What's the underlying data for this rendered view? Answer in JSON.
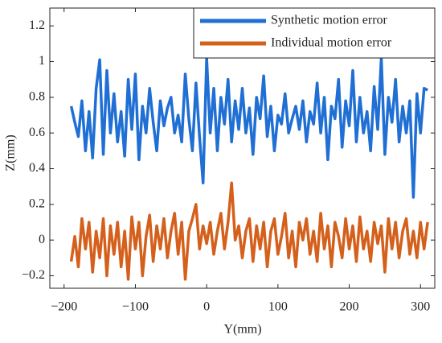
{
  "chart_data": {
    "type": "line",
    "xlabel": "Y(mm)",
    "ylabel": "Z(mm)",
    "x": [
      -190,
      -185,
      -180,
      -175,
      -170,
      -165,
      -160,
      -155,
      -150,
      -145,
      -140,
      -135,
      -130,
      -125,
      -120,
      -115,
      -110,
      -105,
      -100,
      -95,
      -90,
      -85,
      -80,
      -75,
      -70,
      -65,
      -60,
      -55,
      -50,
      -45,
      -40,
      -35,
      -30,
      -25,
      -20,
      -15,
      -10,
      -5,
      0,
      5,
      10,
      15,
      20,
      25,
      30,
      35,
      40,
      45,
      50,
      55,
      60,
      65,
      70,
      75,
      80,
      85,
      90,
      95,
      100,
      105,
      110,
      115,
      120,
      125,
      130,
      135,
      140,
      145,
      150,
      155,
      160,
      165,
      170,
      175,
      180,
      185,
      190,
      195,
      200,
      205,
      210,
      215,
      220,
      225,
      230,
      235,
      240,
      245,
      250,
      255,
      260,
      265,
      270,
      275,
      280,
      285,
      290,
      295,
      300,
      305,
      310
    ],
    "series": [
      {
        "name": "Synthetic motion error",
        "color": "#1f6fd4",
        "values": [
          0.75,
          0.66,
          0.58,
          0.78,
          0.5,
          0.72,
          0.46,
          0.85,
          1.01,
          0.48,
          0.95,
          0.6,
          0.82,
          0.55,
          0.72,
          0.47,
          0.9,
          0.62,
          0.93,
          0.45,
          0.75,
          0.6,
          0.85,
          0.66,
          0.5,
          0.78,
          0.64,
          0.74,
          0.8,
          0.6,
          0.7,
          0.55,
          0.93,
          0.68,
          0.5,
          0.88,
          0.58,
          0.32,
          1.02,
          0.6,
          0.85,
          0.5,
          0.8,
          0.65,
          0.9,
          0.55,
          0.78,
          0.62,
          0.85,
          0.6,
          0.74,
          0.48,
          0.8,
          0.68,
          0.92,
          0.58,
          0.75,
          0.5,
          0.7,
          0.65,
          0.82,
          0.6,
          0.68,
          0.75,
          0.62,
          0.78,
          0.55,
          0.72,
          0.65,
          0.88,
          0.6,
          0.8,
          0.45,
          0.75,
          0.68,
          0.9,
          0.52,
          0.78,
          0.64,
          0.95,
          0.55,
          0.8,
          0.6,
          0.72,
          0.5,
          0.86,
          0.62,
          1.02,
          0.48,
          0.8,
          0.66,
          0.9,
          0.55,
          0.75,
          0.6,
          0.78,
          0.24,
          0.82,
          0.6,
          0.85,
          0.84
        ]
      },
      {
        "name": "Individual motion error",
        "color": "#d4601c",
        "values": [
          -0.12,
          0.02,
          -0.15,
          0.12,
          -0.05,
          0.1,
          -0.18,
          0.05,
          -0.1,
          0.12,
          -0.2,
          0.08,
          -0.08,
          0.1,
          -0.15,
          0.05,
          -0.22,
          0.13,
          -0.05,
          0.1,
          -0.2,
          0.02,
          0.14,
          -0.12,
          0.08,
          -0.05,
          0.12,
          -0.1,
          0.05,
          0.15,
          -0.08,
          0.1,
          -0.22,
          0.05,
          0.12,
          0.2,
          -0.05,
          0.08,
          -0.02,
          0.1,
          -0.08,
          0.05,
          0.15,
          -0.05,
          0.1,
          0.32,
          0,
          0.08,
          -0.1,
          0.05,
          0.12,
          -0.12,
          0.08,
          -0.05,
          0.1,
          -0.15,
          0.05,
          0.12,
          -0.08,
          0.02,
          0.15,
          -0.1,
          0.05,
          -0.15,
          0.1,
          0,
          0.12,
          -0.08,
          0.05,
          -0.12,
          0.15,
          -0.05,
          0.08,
          -0.15,
          0.1,
          0.02,
          -0.1,
          0.12,
          -0.05,
          0.08,
          -0.12,
          0.13,
          -0.05,
          0.05,
          -0.12,
          0.1,
          -0.02,
          0.08,
          -0.18,
          0.12,
          -0.05,
          0.1,
          -0.1,
          0.05,
          0.12,
          -0.08,
          0.05,
          -0.1,
          0.1,
          -0.05,
          0.1
        ]
      }
    ],
    "xlim": [
      -220,
      320
    ],
    "xticks": [
      {
        "value": -200,
        "label": "−200"
      },
      {
        "value": -100,
        "label": "−100"
      },
      0,
      100,
      200,
      300
    ],
    "ylim": [
      -0.27,
      1.3
    ],
    "yticks": [
      {
        "value": -0.2,
        "label": "−0.2"
      },
      0,
      0.2,
      0.4,
      0.6,
      0.8,
      1,
      1.2
    ],
    "legend": "upper right",
    "grid": false
  }
}
